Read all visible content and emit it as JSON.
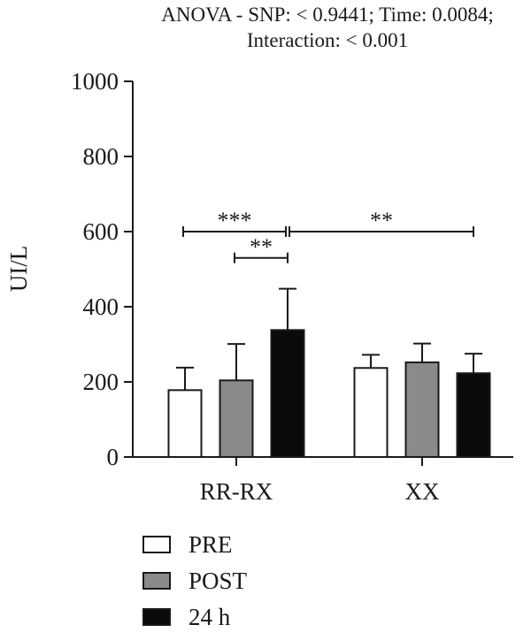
{
  "chart_data": {
    "type": "bar",
    "title": "ANOVA - SNP: < 0.9441; Time: 0.0084;",
    "subtitle": "Interaction: < 0.001",
    "ylabel": "UI/L",
    "xlabel": "",
    "ylim": [
      0,
      1000
    ],
    "yticks": [
      0,
      200,
      400,
      600,
      800,
      1000
    ],
    "grid": false,
    "legend_position": "bottom-left",
    "categories": [
      "RR-RX",
      "XX"
    ],
    "series": [
      {
        "name": "PRE",
        "color": "#ffffff",
        "values": [
          178,
          237
        ],
        "errors": [
          60,
          35
        ]
      },
      {
        "name": "POST",
        "color": "#8a8a8a",
        "values": [
          204,
          252
        ],
        "errors": [
          97,
          50
        ]
      },
      {
        "name": "24 h",
        "color": "#0a0a0a",
        "values": [
          338,
          223
        ],
        "errors": [
          110,
          52
        ]
      }
    ],
    "annotations": [
      {
        "label": "***",
        "from": "RR-RX/PRE",
        "to": "RR-RX/24 h",
        "y": 600
      },
      {
        "label": "**",
        "from": "RR-RX/POST",
        "to": "RR-RX/24 h",
        "y": 530
      },
      {
        "label": "**",
        "from": "RR-RX/24 h",
        "to": "XX/24 h",
        "y": 600
      }
    ]
  }
}
